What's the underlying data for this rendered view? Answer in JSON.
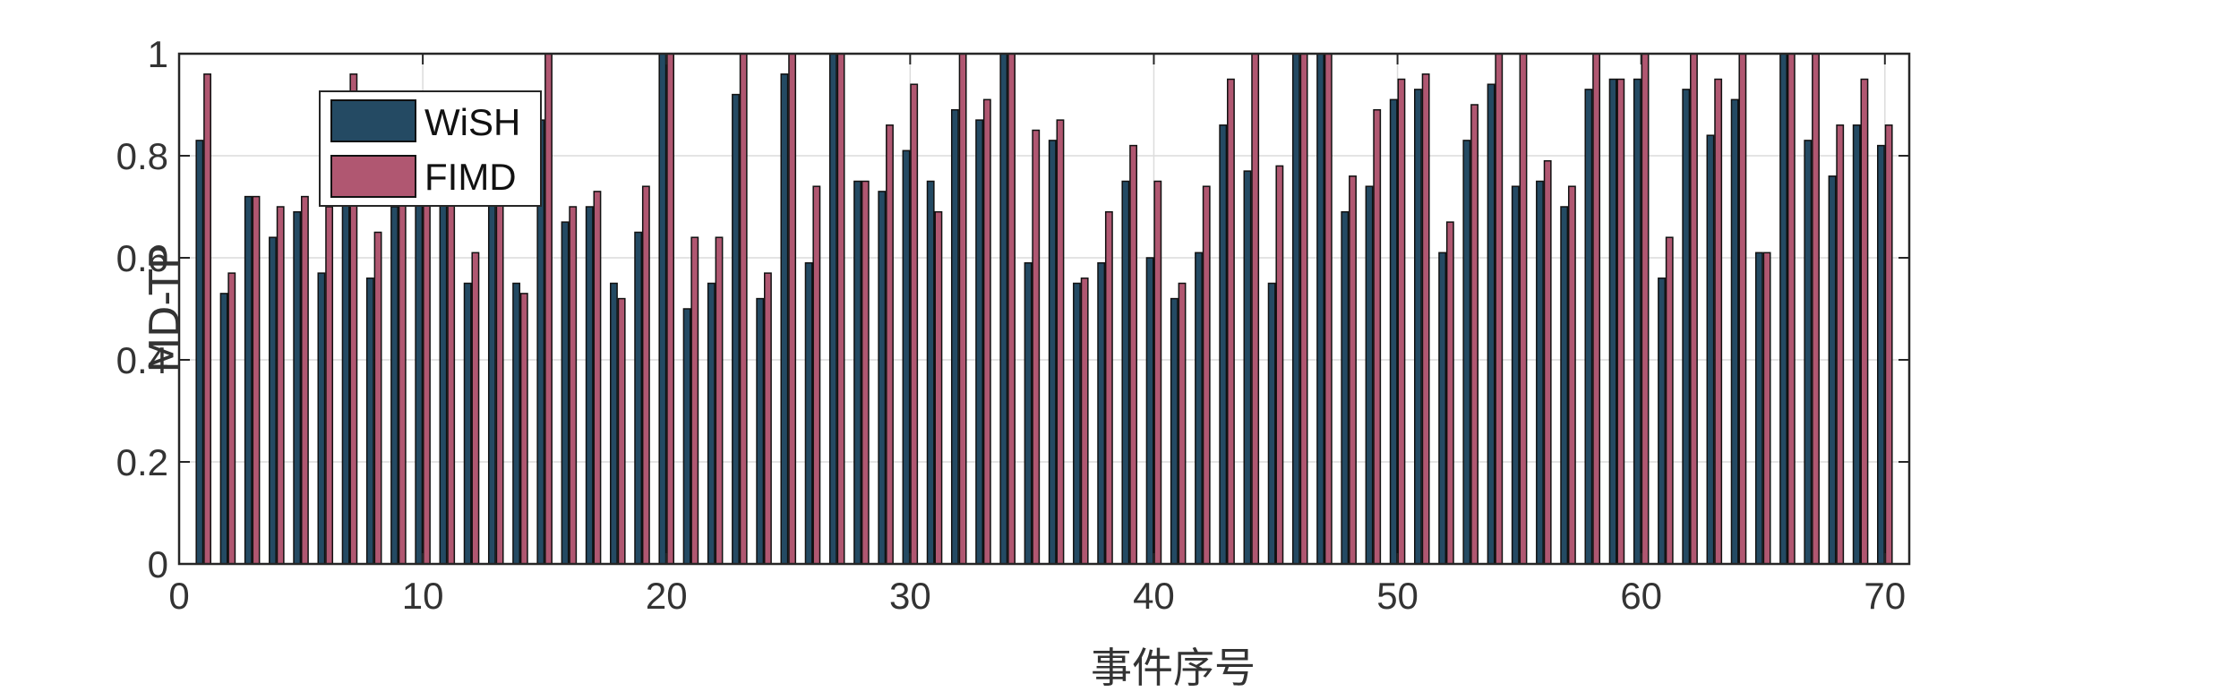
{
  "chart_data": {
    "type": "bar",
    "x": [
      1,
      2,
      3,
      4,
      5,
      6,
      7,
      8,
      9,
      10,
      11,
      12,
      13,
      14,
      15,
      16,
      17,
      18,
      19,
      20,
      21,
      22,
      23,
      24,
      25,
      26,
      27,
      28,
      29,
      30,
      31,
      32,
      33,
      34,
      35,
      36,
      37,
      38,
      39,
      40,
      41,
      42,
      43,
      44,
      45,
      46,
      47,
      48,
      49,
      50,
      51,
      52,
      53,
      54,
      55,
      56,
      57,
      58,
      59,
      60,
      61,
      62,
      63,
      64,
      65,
      66,
      67,
      68,
      69,
      70
    ],
    "series": [
      {
        "name": "WiSH",
        "color": "#244a63",
        "values": [
          0.83,
          0.53,
          0.72,
          0.64,
          0.69,
          0.57,
          0.72,
          0.56,
          0.7,
          0.72,
          0.78,
          0.55,
          0.8,
          0.55,
          0.87,
          0.67,
          0.7,
          0.55,
          0.65,
          1.0,
          0.5,
          0.55,
          0.92,
          0.52,
          0.96,
          0.59,
          1.0,
          0.75,
          0.73,
          0.81,
          0.75,
          0.89,
          0.87,
          1.0,
          0.59,
          0.83,
          0.55,
          0.59,
          0.75,
          0.6,
          0.52,
          0.61,
          0.86,
          0.77,
          0.55,
          1.0,
          1.0,
          0.69,
          0.74,
          0.91,
          0.93,
          0.61,
          0.83,
          0.94,
          0.74,
          0.75,
          0.7,
          0.93,
          0.95,
          0.95,
          0.56,
          0.93,
          0.84,
          0.91,
          0.61,
          1.0,
          0.83,
          0.76,
          0.86,
          0.82
        ]
      },
      {
        "name": "FIMD",
        "color": "#b05771",
        "values": [
          0.96,
          0.57,
          0.72,
          0.7,
          0.72,
          0.7,
          0.96,
          0.65,
          0.72,
          0.72,
          0.91,
          0.61,
          0.84,
          0.53,
          1.0,
          0.7,
          0.73,
          0.52,
          0.74,
          1.0,
          0.64,
          0.64,
          1.0,
          0.57,
          1.0,
          0.74,
          1.0,
          0.75,
          0.86,
          0.94,
          0.69,
          1.0,
          0.91,
          1.0,
          0.85,
          0.87,
          0.56,
          0.69,
          0.82,
          0.75,
          0.55,
          0.74,
          0.95,
          1.0,
          0.78,
          1.0,
          1.0,
          0.76,
          0.89,
          0.95,
          0.96,
          0.67,
          0.9,
          1.0,
          1.0,
          0.79,
          0.74,
          1.0,
          0.95,
          1.0,
          0.64,
          1.0,
          0.95,
          1.0,
          0.61,
          1.0,
          1.0,
          0.86,
          0.95,
          0.86
        ]
      }
    ],
    "xlabel": "事件序号",
    "ylabel": "MD-TP",
    "xlim": [
      0,
      71
    ],
    "ylim": [
      0,
      1
    ],
    "xticks": [
      "0",
      "10",
      "20",
      "30",
      "40",
      "50",
      "60",
      "70"
    ],
    "yticks": [
      "0",
      "0.2",
      "0.4",
      "0.6",
      "0.8",
      "1"
    ],
    "grid": true,
    "legend": "top-left"
  }
}
